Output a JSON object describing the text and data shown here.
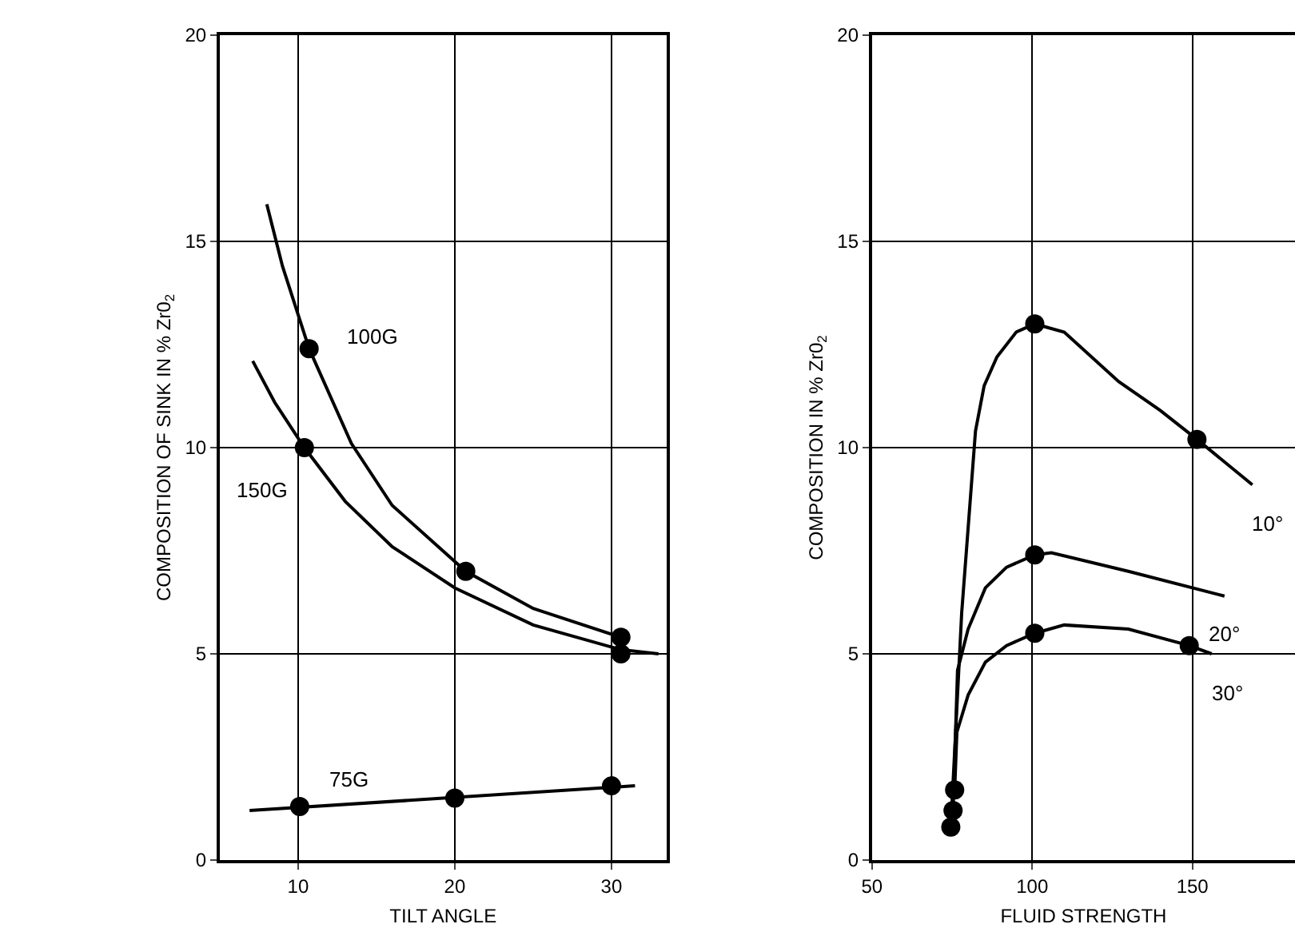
{
  "chart_data": [
    {
      "type": "line",
      "xlabel": "TILT ANGLE",
      "ylabel": "COMPOSITION OF SINK IN % Zr0$_{2}$",
      "xlim": [
        5,
        33.5
      ],
      "ylim": [
        0,
        20
      ],
      "xticks": [
        10,
        20,
        30
      ],
      "yticks": [
        0,
        5,
        10,
        15,
        20
      ],
      "grid": true,
      "marker": "none",
      "line_style": "solid",
      "series": [
        {
          "name": "100G",
          "color": "#000000",
          "x": [
            8,
            9,
            10.7,
            13.4,
            16,
            20.7,
            25,
            30.6
          ],
          "values": [
            15.9,
            14.4,
            12.4,
            10.1,
            8.6,
            7.0,
            6.1,
            5.4
          ]
        },
        {
          "name": "150G",
          "color": "#000000",
          "x": [
            7.1,
            8.5,
            10.4,
            13,
            16,
            20,
            25,
            30.6,
            33
          ],
          "values": [
            12.1,
            11.1,
            10.0,
            8.7,
            7.6,
            6.6,
            5.7,
            5.1,
            5.0
          ]
        },
        {
          "name": "75G",
          "color": "#000000",
          "x": [
            6.9,
            31.5
          ],
          "values": [
            1.2,
            1.8
          ]
        },
        {
          "type": "scatter",
          "marker": "circle",
          "color": "#000000",
          "x": [
            10.7,
            20.7,
            30.6,
            10.4,
            30.6,
            10.1,
            20.0,
            30.0
          ],
          "values": [
            12.4,
            7.0,
            5.4,
            10.0,
            5.0,
            1.3,
            1.5,
            1.8
          ]
        }
      ]
    },
    {
      "type": "line",
      "xlabel": "FLUID STRENGTH",
      "ylabel": "COMPOSITION IN % Zr0$_{2}$",
      "xlim": [
        50,
        182
      ],
      "ylim": [
        0,
        20
      ],
      "xticks": [
        50,
        100,
        150
      ],
      "yticks": [
        0,
        5,
        10,
        15,
        20
      ],
      "grid": true,
      "marker": "none",
      "line_style": "solid",
      "series": [
        {
          "name": "10°",
          "color": "#000000",
          "x": [
            74.6,
            78,
            82.3,
            85,
            89,
            95,
            100.8,
            110,
            127,
            140,
            151.4,
            168.7
          ],
          "values": [
            0.8,
            6.0,
            10.4,
            11.5,
            12.2,
            12.8,
            13.0,
            12.8,
            11.6,
            10.9,
            10.2,
            9.1
          ]
        },
        {
          "name": "20°",
          "color": "#000000",
          "x": [
            75.3,
            76.7,
            80,
            85.4,
            92,
            100.8,
            106,
            130,
            160
          ],
          "values": [
            1.2,
            4.6,
            5.6,
            6.6,
            7.1,
            7.4,
            7.45,
            7.0,
            6.4
          ]
        },
        {
          "name": "30°",
          "color": "#000000",
          "x": [
            75.8,
            76.5,
            80,
            85.4,
            92,
            100.8,
            110,
            130,
            149,
            156
          ],
          "values": [
            1.7,
            3.1,
            4.0,
            4.8,
            5.2,
            5.5,
            5.7,
            5.6,
            5.2,
            5.0
          ]
        },
        {
          "type": "scatter",
          "marker": "circle",
          "color": "#000000",
          "x": [
            100.8,
            151.4,
            100.8,
            100.8,
            149,
            75.8,
            75.3,
            74.6
          ],
          "values": [
            13.0,
            10.2,
            7.4,
            5.5,
            5.2,
            1.7,
            1.2,
            0.8
          ]
        }
      ]
    }
  ]
}
